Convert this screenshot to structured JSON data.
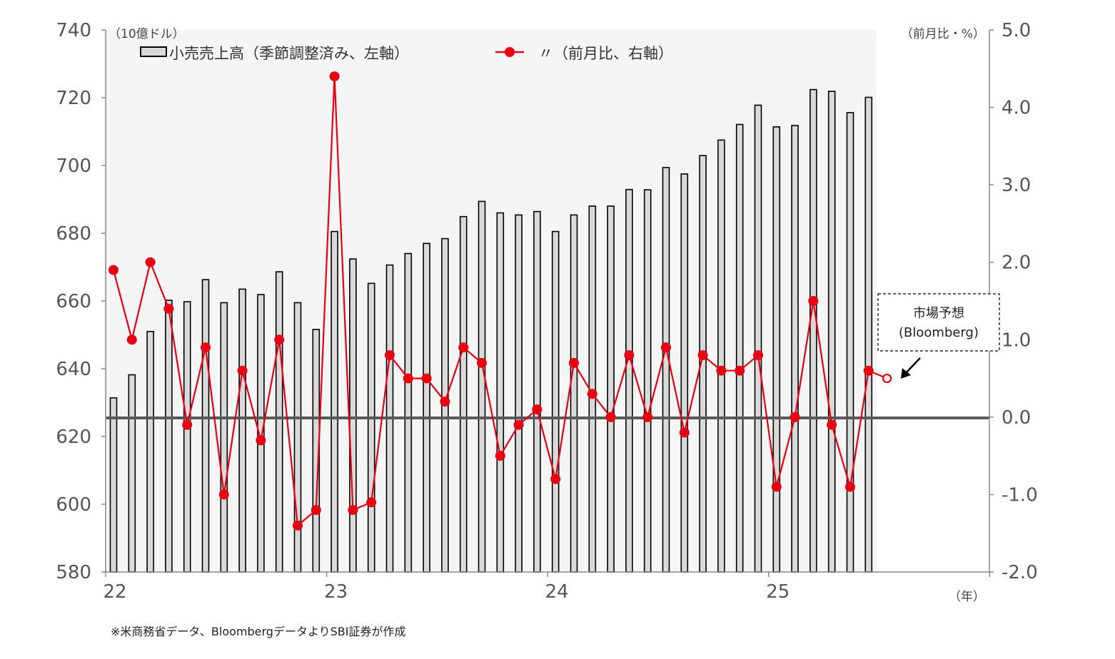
{
  "chart_data": {
    "type": "bar+line",
    "left_axis_unit": "（10億ドル）",
    "right_axis_unit": "（前月比・%）",
    "x_unit": "（年）",
    "left_ylim": [
      580,
      740
    ],
    "left_yticks": [
      "740",
      "720",
      "700",
      "680",
      "660",
      "640",
      "620",
      "600",
      "580"
    ],
    "right_ylim": [
      -2.0,
      5.0
    ],
    "right_yticks": [
      "5.0",
      "4.0",
      "3.0",
      "2.0",
      "1.0",
      "0.0",
      "-1.0",
      "-2.0"
    ],
    "x_tick_labels": [
      "22",
      "23",
      "24",
      "25"
    ],
    "months": [
      "2022-01",
      "2022-02",
      "2022-03",
      "2022-04",
      "2022-05",
      "2022-06",
      "2022-07",
      "2022-08",
      "2022-09",
      "2022-10",
      "2022-11",
      "2022-12",
      "2023-01",
      "2023-02",
      "2023-03",
      "2023-04",
      "2023-05",
      "2023-06",
      "2023-07",
      "2023-08",
      "2023-09",
      "2023-10",
      "2023-11",
      "2023-12",
      "2024-01",
      "2024-02",
      "2024-03",
      "2024-04",
      "2024-05",
      "2024-06",
      "2024-07",
      "2024-08",
      "2024-09",
      "2024-10",
      "2024-11",
      "2024-12",
      "2025-01",
      "2025-02",
      "2025-03",
      "2025-04",
      "2025-05",
      "2025-06"
    ],
    "series": [
      {
        "name": "小売売上高（季節調整済み、左軸）",
        "axis": "left",
        "kind": "bar",
        "values": [
          631.4,
          638.2,
          651.0,
          660.2,
          659.8,
          666.3,
          659.5,
          663.5,
          661.9,
          668.6,
          659.5,
          651.6,
          680.5,
          672.4,
          665.2,
          670.6,
          674.0,
          677.0,
          678.4,
          684.9,
          689.4,
          686.0,
          685.4,
          686.4,
          680.5,
          685.4,
          688.0,
          688.0,
          692.9,
          692.8,
          699.4,
          697.5,
          702.9,
          707.5,
          712.1,
          717.8,
          711.4,
          711.8,
          722.4,
          721.9,
          715.6,
          720.1
        ]
      },
      {
        "name": "〃（前月比、右軸）",
        "axis": "right",
        "kind": "line",
        "color": "#e60012",
        "values": [
          1.9,
          1.0,
          2.0,
          1.4,
          -0.1,
          0.9,
          -1.0,
          0.6,
          -0.3,
          1.0,
          -1.4,
          -1.2,
          4.4,
          -1.2,
          -1.1,
          0.8,
          0.5,
          0.5,
          0.2,
          0.9,
          0.7,
          -0.5,
          -0.1,
          0.1,
          -0.8,
          0.7,
          0.3,
          0.0,
          0.8,
          0.0,
          0.9,
          -0.2,
          0.8,
          0.6,
          0.6,
          0.8,
          -0.9,
          0.0,
          1.5,
          -0.1,
          -0.9,
          0.6
        ]
      }
    ],
    "forecast": {
      "month": "2025-07",
      "value": 0.5,
      "label_line1": "市場予想",
      "label_line2": "(Bloomberg)"
    },
    "legend_position": "top-left",
    "colors": {
      "bar_fill": "#d9d9d9",
      "bar_stroke": "#000000",
      "line": "#e60012",
      "zero_line": "#595959",
      "plot_bg": "#f5f5f5"
    }
  },
  "source_note": "※米商務省データ、BloombergデータよりSBI証券が作成"
}
